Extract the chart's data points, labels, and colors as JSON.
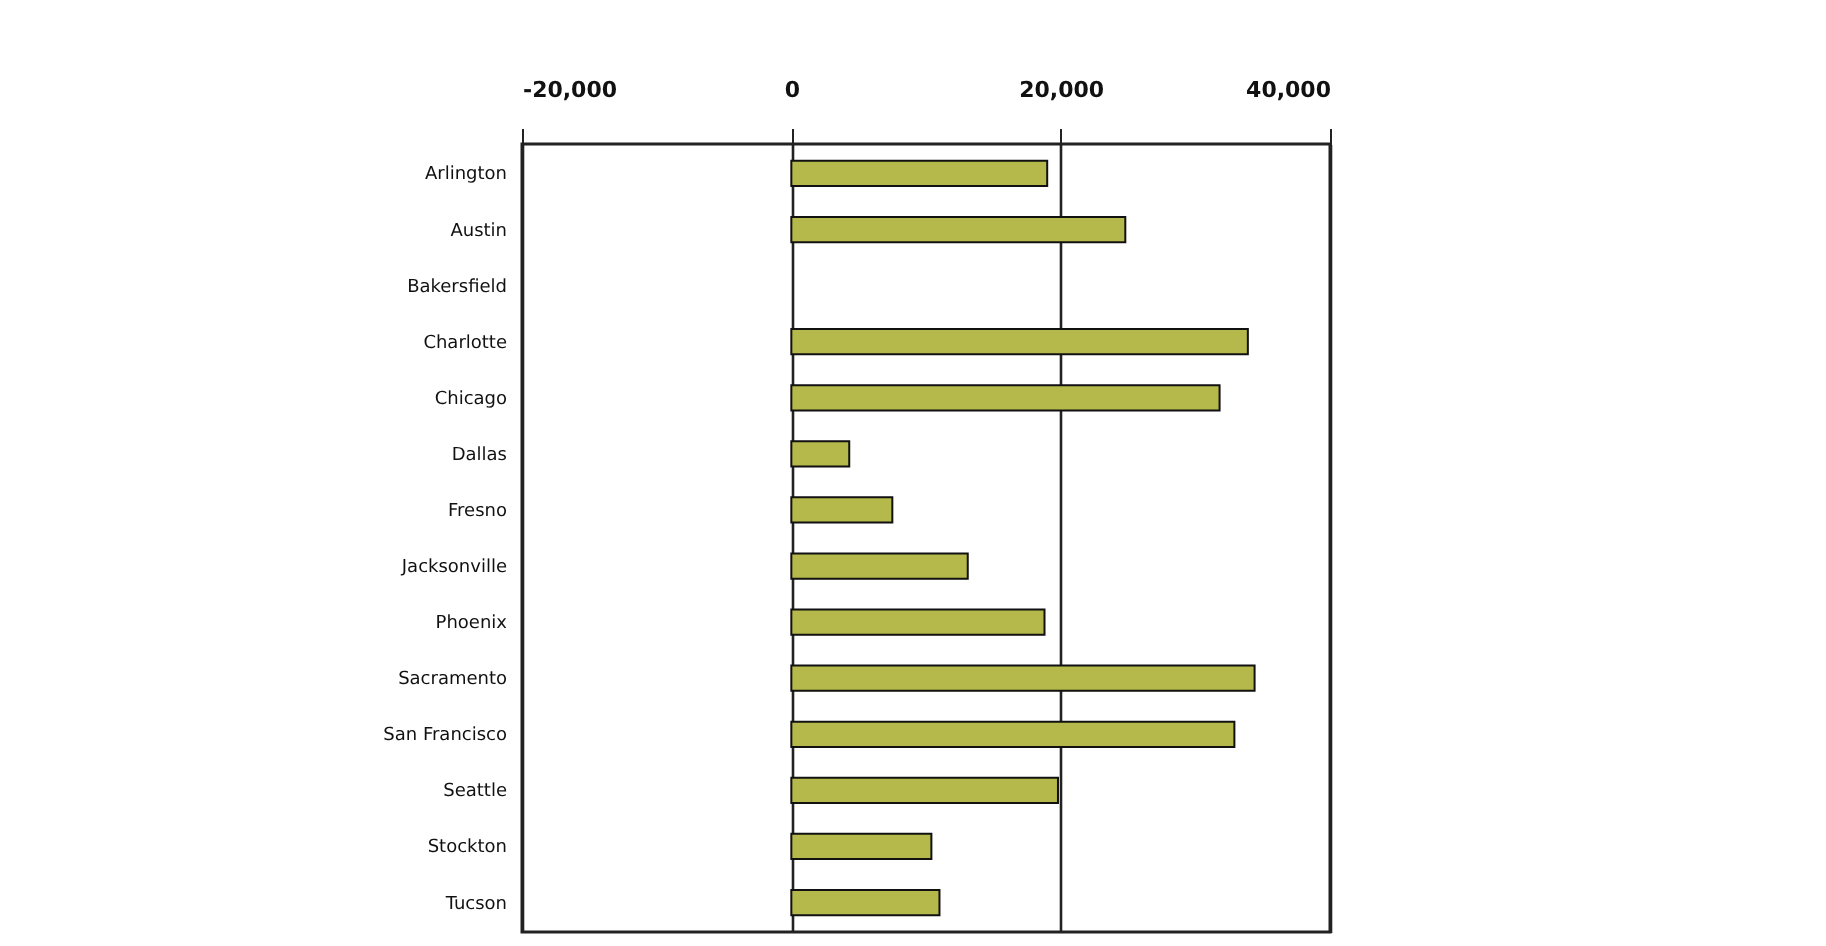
{
  "chart_data": {
    "type": "bar",
    "orientation": "horizontal",
    "categories": [
      "Arlington",
      "Austin",
      "Bakersfield",
      "Charlotte",
      "Chicago",
      "Dallas",
      "Fresno",
      "Jacksonville",
      "Phoenix",
      "Sacramento",
      "San Francisco",
      "Seattle",
      "Stockton",
      "Tucson"
    ],
    "values": [
      19000,
      24800,
      0,
      33900,
      31800,
      4300,
      7500,
      13100,
      18800,
      34400,
      32900,
      19800,
      10400,
      11000
    ],
    "color": "#b5b84a",
    "xlim": [
      -20000,
      40000
    ],
    "xticks": [
      {
        "value": -20000,
        "label": "-20,000"
      },
      0,
      {
        "value": 20000,
        "label": "20,000"
      },
      {
        "value": 40000,
        "label": "40,000"
      }
    ],
    "grid": "x"
  }
}
